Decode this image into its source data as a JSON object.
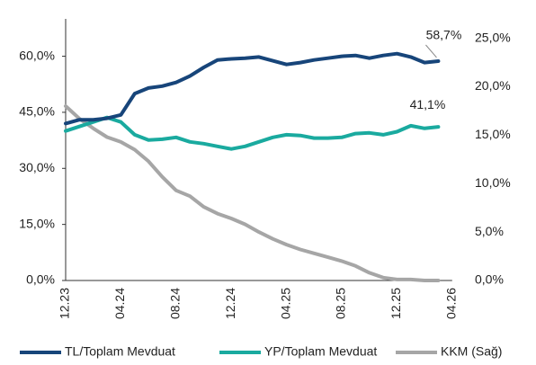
{
  "chart_data": {
    "type": "line",
    "categories": [
      "12.23",
      null,
      null,
      null,
      "04.24",
      null,
      null,
      null,
      "08.24",
      null,
      null,
      null,
      "12.24",
      null,
      null,
      null,
      "04.25",
      null,
      null,
      null,
      "08.25",
      null,
      null,
      null,
      "12.25",
      null,
      null,
      null,
      "04.26"
    ],
    "series": [
      {
        "name": "TL/Toplam Mevduat",
        "color": "#17457a",
        "axis": "y",
        "values": [
          42,
          43,
          43,
          43.4,
          44.3,
          50,
          51.5,
          52,
          53,
          54.7,
          57,
          59,
          59.3,
          59.5,
          59.8,
          58.8,
          57.8,
          58.3,
          59,
          59.5,
          60,
          60.2,
          59.5,
          60.2,
          60.7,
          59.8,
          58.3,
          58.7,
          null
        ],
        "value_labels": [
          null,
          null,
          null,
          null,
          null,
          null,
          null,
          null,
          null,
          null,
          null,
          null,
          null,
          null,
          null,
          null,
          null,
          null,
          null,
          null,
          null,
          null,
          null,
          null,
          null,
          null,
          null,
          "58,7%",
          null
        ]
      },
      {
        "name": "YP/Toplam Mevduat",
        "color": "#1aaa9f",
        "axis": "y",
        "values": [
          40,
          41.2,
          42.4,
          43.6,
          42.4,
          39,
          37.6,
          37.8,
          38.3,
          37.1,
          36.6,
          35.9,
          35.2,
          35.9,
          37.1,
          38.3,
          39,
          38.8,
          38.1,
          38.1,
          38.3,
          39.3,
          39.5,
          39,
          39.8,
          41.4,
          40.7,
          41.1,
          null
        ],
        "value_labels": [
          null,
          null,
          null,
          null,
          null,
          null,
          null,
          null,
          null,
          null,
          null,
          null,
          null,
          null,
          null,
          null,
          null,
          null,
          null,
          null,
          null,
          null,
          null,
          null,
          null,
          null,
          null,
          "41,1%",
          null
        ]
      },
      {
        "name": "KKM (Sağ)",
        "color": "#a6a6a6",
        "axis": "y2",
        "values": [
          18,
          16.7,
          15.7,
          14.8,
          14.3,
          13.5,
          12.3,
          10.7,
          9.3,
          8.7,
          7.6,
          6.9,
          6.4,
          5.8,
          5,
          4.3,
          3.7,
          3.2,
          2.8,
          2.4,
          2,
          1.5,
          0.8,
          0.3,
          0.1,
          0.1,
          0,
          0,
          null
        ]
      }
    ],
    "ylim": [
      0,
      70
    ],
    "yticks": [
      {
        "value": 0,
        "label": "0,0%"
      },
      {
        "value": 15,
        "label": "15,0%"
      },
      {
        "value": 30,
        "label": "30,0%"
      },
      {
        "value": 45,
        "label": "45,0%"
      },
      {
        "value": 60,
        "label": "60,0%"
      }
    ],
    "y2lim": [
      0,
      27
    ],
    "y2ticks": [
      {
        "value": 0,
        "label": "0,0%"
      },
      {
        "value": 5,
        "label": "5,0%"
      },
      {
        "value": 10,
        "label": "10,0%"
      },
      {
        "value": 15,
        "label": "15,0%"
      },
      {
        "value": 20,
        "label": "20,0%"
      },
      {
        "value": 25,
        "label": "25,0%"
      }
    ],
    "grid": false,
    "legend": "bottom"
  }
}
